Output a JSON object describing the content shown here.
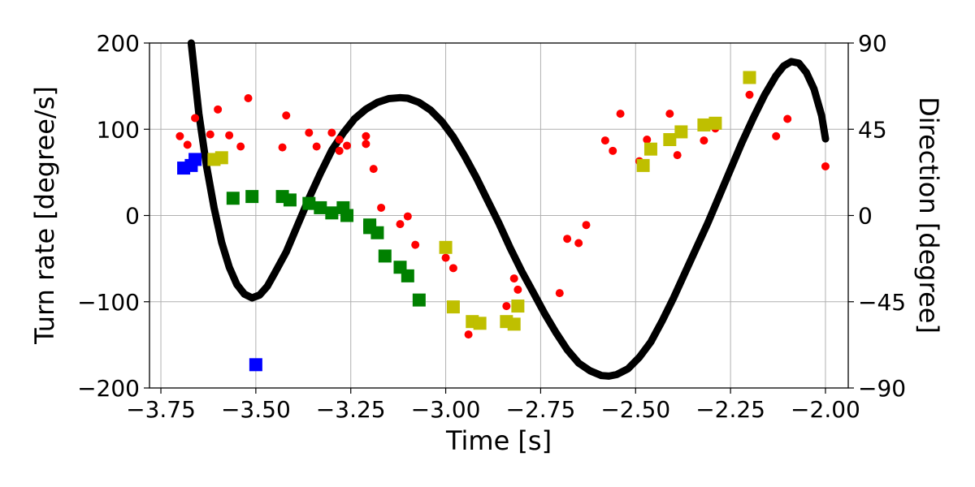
{
  "chart_data": {
    "type": "scatter",
    "xlabel": "Time [s]",
    "ylabel": "Turn rate [degree/s]",
    "y2label": "Direction [degree]",
    "xlim": [
      -3.78,
      -1.94
    ],
    "ylim": [
      -200,
      200
    ],
    "y2lim": [
      -90,
      90
    ],
    "grid": true,
    "x_ticks": [
      -3.75,
      -3.5,
      -3.25,
      -3.0,
      -2.75,
      -2.5,
      -2.25,
      -2.0
    ],
    "x_tick_labels": [
      "−3.75",
      "−3.50",
      "−3.25",
      "−3.00",
      "−2.75",
      "−2.50",
      "−2.25",
      "−2.00"
    ],
    "y_ticks": [
      -200,
      -100,
      0,
      100,
      200
    ],
    "y_tick_labels": [
      "−200",
      "−100",
      "0",
      "100",
      "200"
    ],
    "y2_ticks": [
      -90,
      -45,
      0,
      45,
      90
    ],
    "y2_tick_labels": [
      "−90",
      "−45",
      "0",
      "45",
      "90"
    ],
    "direction_curve": {
      "axis": "right",
      "color": "#000000",
      "points": [
        [
          -3.67,
          90
        ],
        [
          -3.65,
          53
        ],
        [
          -3.63,
          26
        ],
        [
          -3.61,
          4
        ],
        [
          -3.59,
          -14
        ],
        [
          -3.57,
          -27
        ],
        [
          -3.55,
          -36
        ],
        [
          -3.53,
          -41
        ],
        [
          -3.51,
          -43
        ],
        [
          -3.49,
          -41.5
        ],
        [
          -3.47,
          -37
        ],
        [
          -3.45,
          -30
        ],
        [
          -3.42,
          -19
        ],
        [
          -3.39,
          -5
        ],
        [
          -3.36,
          9
        ],
        [
          -3.33,
          22
        ],
        [
          -3.3,
          34
        ],
        [
          -3.27,
          43
        ],
        [
          -3.24,
          50.5
        ],
        [
          -3.21,
          55.5
        ],
        [
          -3.18,
          59
        ],
        [
          -3.15,
          61
        ],
        [
          -3.12,
          61.5
        ],
        [
          -3.1,
          61.2
        ],
        [
          -3.07,
          59
        ],
        [
          -3.04,
          55
        ],
        [
          -3.01,
          49
        ],
        [
          -2.98,
          41
        ],
        [
          -2.95,
          31
        ],
        [
          -2.92,
          20
        ],
        [
          -2.89,
          8
        ],
        [
          -2.86,
          -4
        ],
        [
          -2.83,
          -17
        ],
        [
          -2.8,
          -29
        ],
        [
          -2.77,
          -40
        ],
        [
          -2.74,
          -51
        ],
        [
          -2.71,
          -61
        ],
        [
          -2.68,
          -70
        ],
        [
          -2.65,
          -77
        ],
        [
          -2.62,
          -81
        ],
        [
          -2.59,
          -83.5
        ],
        [
          -2.57,
          -83.8
        ],
        [
          -2.55,
          -83
        ],
        [
          -2.52,
          -80
        ],
        [
          -2.49,
          -74
        ],
        [
          -2.46,
          -66
        ],
        [
          -2.43,
          -55
        ],
        [
          -2.4,
          -43
        ],
        [
          -2.37,
          -30
        ],
        [
          -2.34,
          -17
        ],
        [
          -2.31,
          -4
        ],
        [
          -2.28,
          10
        ],
        [
          -2.25,
          24
        ],
        [
          -2.22,
          38
        ],
        [
          -2.19,
          51
        ],
        [
          -2.16,
          63
        ],
        [
          -2.13,
          73
        ],
        [
          -2.11,
          78
        ],
        [
          -2.09,
          80.3
        ],
        [
          -2.07,
          79.5
        ],
        [
          -2.05,
          74.5
        ],
        [
          -2.03,
          66
        ],
        [
          -2.01,
          52
        ],
        [
          -2.0,
          40
        ]
      ]
    },
    "series": [
      {
        "marker": "circle",
        "axis": "left",
        "color": "#ff0000",
        "points": [
          [
            -3.7,
            92
          ],
          [
            -3.68,
            82
          ],
          [
            -3.66,
            113
          ],
          [
            -3.62,
            94
          ],
          [
            -3.6,
            123
          ],
          [
            -3.57,
            93
          ],
          [
            -3.54,
            80
          ],
          [
            -3.52,
            136
          ],
          [
            -3.43,
            79
          ],
          [
            -3.42,
            116
          ],
          [
            -3.36,
            96
          ],
          [
            -3.34,
            80
          ],
          [
            -3.3,
            96
          ],
          [
            -3.28,
            88
          ],
          [
            -3.28,
            75
          ],
          [
            -3.26,
            81
          ],
          [
            -3.21,
            92
          ],
          [
            -3.21,
            83
          ],
          [
            -3.19,
            54
          ],
          [
            -3.17,
            9
          ],
          [
            -3.12,
            -10
          ],
          [
            -3.1,
            -1
          ],
          [
            -3.08,
            -34
          ],
          [
            -3.0,
            -49
          ],
          [
            -2.98,
            -61
          ],
          [
            -2.94,
            -138
          ],
          [
            -2.84,
            -105
          ],
          [
            -2.82,
            -73
          ],
          [
            -2.81,
            -86
          ],
          [
            -2.7,
            -90
          ],
          [
            -2.68,
            -27
          ],
          [
            -2.65,
            -32
          ],
          [
            -2.63,
            -11
          ],
          [
            -2.58,
            87
          ],
          [
            -2.56,
            75
          ],
          [
            -2.54,
            118
          ],
          [
            -2.49,
            63
          ],
          [
            -2.47,
            88
          ],
          [
            -2.41,
            118
          ],
          [
            -2.39,
            70
          ],
          [
            -2.32,
            87
          ],
          [
            -2.29,
            101
          ],
          [
            -2.2,
            140
          ],
          [
            -2.13,
            92
          ],
          [
            -2.1,
            112
          ],
          [
            -2.0,
            57
          ]
        ]
      },
      {
        "marker": "square",
        "axis": "left",
        "color": "#0000ff",
        "points": [
          [
            -3.69,
            55
          ],
          [
            -3.67,
            58
          ],
          [
            -3.66,
            65
          ],
          [
            -3.5,
            -173
          ]
        ]
      },
      {
        "marker": "square",
        "axis": "left",
        "color": "#bfbf00",
        "points": [
          [
            -3.61,
            65
          ],
          [
            -3.59,
            67
          ],
          [
            -3.0,
            -37
          ],
          [
            -2.98,
            -106
          ],
          [
            -2.93,
            -123
          ],
          [
            -2.91,
            -125
          ],
          [
            -2.84,
            -123
          ],
          [
            -2.82,
            -126
          ],
          [
            -2.81,
            -105
          ],
          [
            -2.48,
            58
          ],
          [
            -2.46,
            77
          ],
          [
            -2.41,
            88
          ],
          [
            -2.38,
            97
          ],
          [
            -2.32,
            105
          ],
          [
            -2.29,
            107
          ],
          [
            -2.2,
            160
          ]
        ]
      },
      {
        "marker": "square",
        "axis": "left",
        "color": "#008000",
        "points": [
          [
            -3.56,
            20
          ],
          [
            -3.51,
            22
          ],
          [
            -3.43,
            22
          ],
          [
            -3.41,
            18
          ],
          [
            -3.36,
            14
          ],
          [
            -3.33,
            9
          ],
          [
            -3.3,
            3
          ],
          [
            -3.27,
            9
          ],
          [
            -3.26,
            0
          ],
          [
            -3.2,
            -11
          ],
          [
            -3.2,
            -14
          ],
          [
            -3.18,
            -20
          ],
          [
            -3.16,
            -47
          ],
          [
            -3.12,
            -60
          ],
          [
            -3.1,
            -70
          ],
          [
            -3.07,
            -98
          ]
        ]
      }
    ]
  }
}
